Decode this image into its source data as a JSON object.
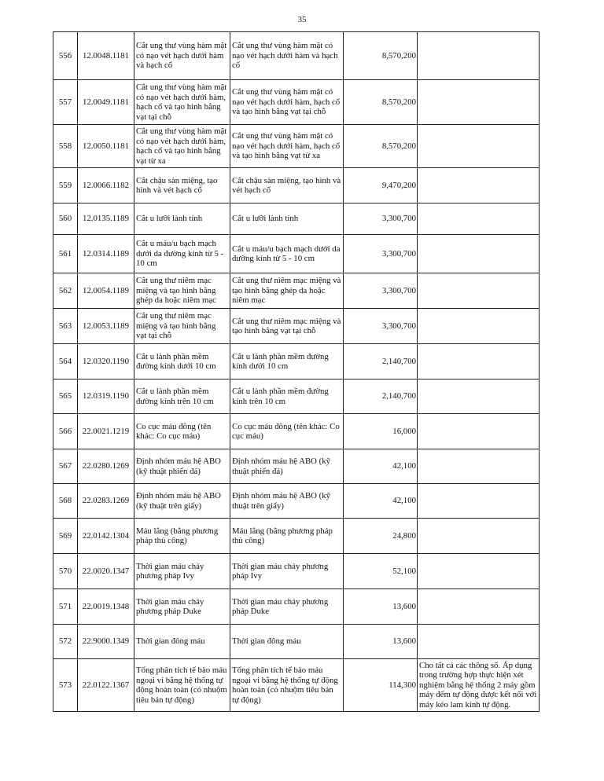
{
  "page_number": "35",
  "rows": [
    {
      "stt": "556",
      "code": "12.0048.1181",
      "name1": "Cắt ung thư vùng hàm mặt có nạo vét hạch dưới hàm và hạch cổ",
      "name2": "Cắt ung thư vùng hàm mặt có nạo vét hạch dưới hàm và hạch cổ",
      "price": "8,570,200",
      "note": ""
    },
    {
      "stt": "557",
      "code": "12.0049.1181",
      "name1": "Cắt ung thư vùng hàm mặt có nạo vét hạch dưới hàm, hạch cổ và tạo hình bằng vạt tại chỗ",
      "name2": "Cắt ung thư vùng hàm mặt có nạo vét hạch dưới hàm, hạch cổ và tạo hình bằng vạt tại chỗ",
      "price": "8,570,200",
      "note": ""
    },
    {
      "stt": "558",
      "code": "12.0050.1181",
      "name1": "Cắt ung thư vùng hàm mặt có nạo vét hạch dưới hàm, hạch cổ và tạo hình bằng vạt từ xa",
      "name2": "Cắt ung thư vùng hàm mặt có nạo vét hạch dưới hàm, hạch cổ và tạo hình bằng vạt từ xa",
      "price": "8,570,200",
      "note": ""
    },
    {
      "stt": "559",
      "code": "12.0066.1182",
      "name1": "Cắt chậu sàn miệng, tạo hình và vét hạch cổ",
      "name2": "Cắt chậu sàn miệng, tạo hình và vét hạch cổ",
      "price": "9,470,200",
      "note": ""
    },
    {
      "stt": "560",
      "code": "12.0135.1189",
      "name1": "Cắt u lưỡi lành tính",
      "name2": "Cắt u lưỡi lành tính",
      "price": "3,300,700",
      "note": ""
    },
    {
      "stt": "561",
      "code": "12.0314.1189",
      "name1": "Cắt u máu/u bạch mạch dưới da đường kính từ 5 - 10 cm",
      "name2": "Cắt u máu/u bạch mạch dưới da đường kính từ 5 - 10 cm",
      "price": "3,300,700",
      "note": ""
    },
    {
      "stt": "562",
      "code": "12.0054.1189",
      "name1": "Cắt ung thư niêm mạc miệng và tạo hình bằng ghép da hoặc niêm mạc",
      "name2": "Cắt ung thư niêm mạc miệng và tạo hình bằng ghép da hoặc niêm mạc",
      "price": "3,300,700",
      "note": ""
    },
    {
      "stt": "563",
      "code": "12.0053.1189",
      "name1": "Cắt ung thư niêm mạc miệng và tạo hình bằng vạt tại chỗ",
      "name2": "Cắt ung thư niêm mạc miệng và tạo hình bằng vạt tại chỗ",
      "price": "3,300,700",
      "note": ""
    },
    {
      "stt": "564",
      "code": "12.0320.1190",
      "name1": "Cắt u lành phần mềm đường kính dưới 10 cm",
      "name2": "Cắt u lành phần mềm đường kính dưới 10 cm",
      "price": "2,140,700",
      "note": ""
    },
    {
      "stt": "565",
      "code": "12.0319.1190",
      "name1": "Cắt u lành phần mềm đường kính trên 10 cm",
      "name2": "Cắt u lành phần mềm đường kính trên 10 cm",
      "price": "2,140,700",
      "note": ""
    },
    {
      "stt": "566",
      "code": "22.0021.1219",
      "name1": "Co cục máu đông (tên khác: Co cục máu)",
      "name2": "Co cục máu đông (tên khác: Co cục máu)",
      "price": "16,000",
      "note": ""
    },
    {
      "stt": "567",
      "code": "22.0280.1269",
      "name1": "Định nhóm máu hệ ABO (kỹ thuật phiến đá)",
      "name2": "Định nhóm máu hệ ABO (kỹ thuật phiến đá)",
      "price": "42,100",
      "note": ""
    },
    {
      "stt": "568",
      "code": "22.0283.1269",
      "name1": "Định nhóm máu hệ ABO (kỹ thuật trên giấy)",
      "name2": "Định nhóm máu hệ ABO (kỹ thuật trên giấy)",
      "price": "42,100",
      "note": ""
    },
    {
      "stt": "569",
      "code": "22.0142.1304",
      "name1": "Máu lắng (bằng phương pháp thủ công)",
      "name2": "Máu lắng (bằng phương pháp thủ công)",
      "price": "24,800",
      "note": ""
    },
    {
      "stt": "570",
      "code": "22.0020.1347",
      "name1": "Thời gian máu chảy phương pháp Ivy",
      "name2": "Thời gian máu chảy phương pháp Ivy",
      "price": "52,100",
      "note": ""
    },
    {
      "stt": "571",
      "code": "22.0019.1348",
      "name1": "Thời gian máu chảy phương pháp Duke",
      "name2": "Thời gian máu chảy phương pháp Duke",
      "price": "13,600",
      "note": ""
    },
    {
      "stt": "572",
      "code": "22.9000.1349",
      "name1": "Thời gian đông máu",
      "name2": "Thời gian đông máu",
      "price": "13,600",
      "note": ""
    },
    {
      "stt": "573",
      "code": "22.0122.1367",
      "name1": "Tổng phân tích tế bào máu ngoại vi bằng hệ thống tự động hoàn toàn (có nhuộm tiêu bản tự động)",
      "name2": "Tổng phân tích tế bào máu ngoại vi bằng hệ thống tự động hoàn toàn (có nhuộm tiêu bản tự động)",
      "price": "114,300",
      "note": "Cho tất cả các thông số. Áp dụng trong trường hợp thực hiện xét nghiệm bằng hệ thống 2 máy gồm máy đếm tự động được kết nối với máy kéo lam kính tự động."
    }
  ]
}
